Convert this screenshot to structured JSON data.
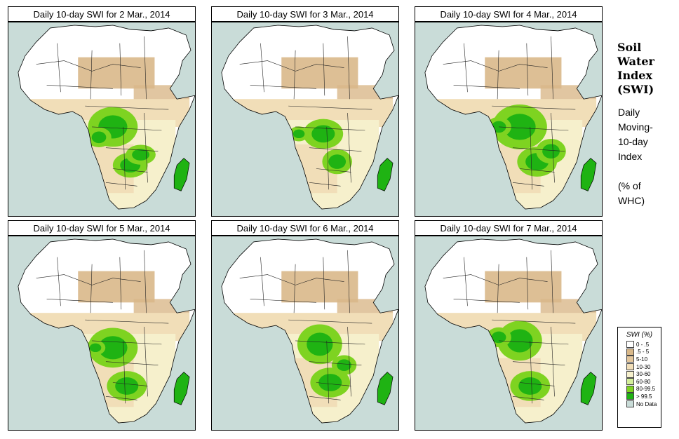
{
  "panels": [
    {
      "title": "Daily 10-day SWI for  2 Mar., 2014"
    },
    {
      "title": "Daily 10-day SWI for  3 Mar., 2014"
    },
    {
      "title": "Daily 10-day SWI for  4 Mar., 2014"
    },
    {
      "title": "Daily 10-day SWI for  5 Mar., 2014"
    },
    {
      "title": "Daily 10-day SWI for  6 Mar., 2014"
    },
    {
      "title": "Daily 10-day SWI for  7 Mar., 2014"
    }
  ],
  "side": {
    "title_lines": [
      "Soil",
      "Water",
      "Index",
      "(SWI)"
    ],
    "sub_lines": [
      "Daily",
      "Moving-",
      "10-day",
      "Index",
      "",
      "(% of",
      " WHC)"
    ]
  },
  "legend": {
    "title": "SWI (%)",
    "items": [
      {
        "label": "0 - .5",
        "color": "#ffffff"
      },
      {
        "label": ".5 - 5",
        "color": "#d9b889"
      },
      {
        "label": "5-10",
        "color": "#e3c69c"
      },
      {
        "label": "10-30",
        "color": "#f1deb8"
      },
      {
        "label": "30-60",
        "color": "#f6f0cc"
      },
      {
        "label": "60-80",
        "color": "#d4ee9a"
      },
      {
        "label": "80-99.5",
        "color": "#7ed321"
      },
      {
        "label": "> 99.5",
        "color": "#1fb313"
      },
      {
        "label": "No Data",
        "color": "#c9dcd8"
      }
    ]
  },
  "colors": {
    "sea": "#c9dcd8",
    "desert": "#ffffff",
    "dry": "#d9b889",
    "semi": "#f1deb8",
    "moist": "#f6f0cc",
    "wet": "#7ed321",
    "saturated": "#1fb313"
  }
}
